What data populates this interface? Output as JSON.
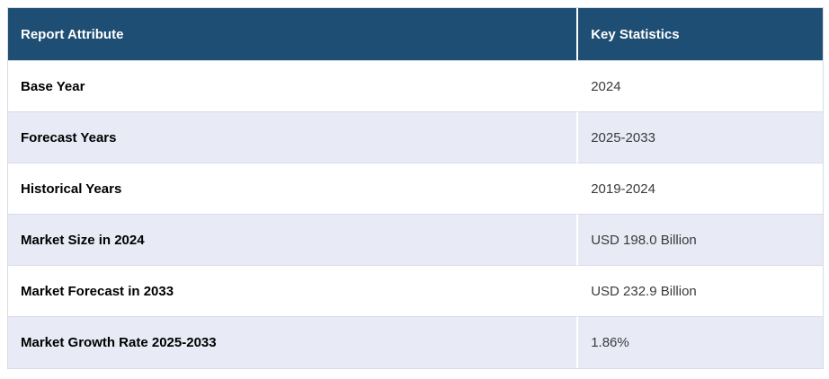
{
  "chart_data": {
    "type": "table",
    "columns": [
      {
        "label": "Report Attribute"
      },
      {
        "label": "Key Statistics"
      }
    ],
    "rows": [
      {
        "attribute": "Base Year",
        "value": "2024"
      },
      {
        "attribute": "Forecast Years",
        "value": "2025-2033"
      },
      {
        "attribute": "Historical Years",
        "value": "2019-2024"
      },
      {
        "attribute": "Market Size in 2024",
        "value": "USD 198.0 Billion"
      },
      {
        "attribute": "Market Forecast in 2033",
        "value": "USD 232.9 Billion"
      },
      {
        "attribute": "Market Growth Rate 2025-2033",
        "value": "1.86%"
      }
    ]
  },
  "colors": {
    "header_bg": "#1f4e74",
    "header_text": "#ffffff",
    "row_bg": "#ffffff",
    "row_alt_bg": "#e8eaf6",
    "border": "#d8dbe7",
    "divider": "#ffffff",
    "attribute_text": "#000000",
    "value_text": "#3a3a3a"
  }
}
